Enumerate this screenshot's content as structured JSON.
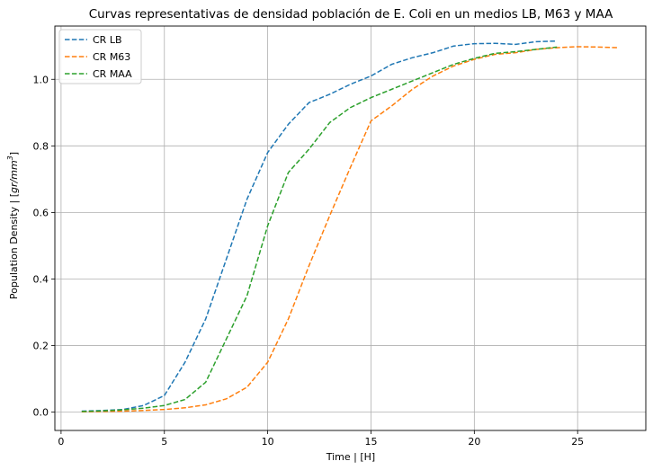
{
  "chart_data": {
    "type": "line",
    "title": "Curvas representativas de densidad población de E. Coli en un medios LB, M63 y MAA",
    "xlabel": "Time | [H]",
    "ylabel_prefix": "Population Density | [",
    "ylabel_unit_main": "gr/mm",
    "ylabel_unit_sup": "3",
    "ylabel_suffix": "]",
    "xlim": [
      -0.3,
      28.3
    ],
    "ylim": [
      -0.055,
      1.16
    ],
    "xticks": [
      0,
      5,
      10,
      15,
      20,
      25
    ],
    "xtick_labels": [
      "0",
      "5",
      "10",
      "15",
      "20",
      "25"
    ],
    "yticks": [
      0.0,
      0.2,
      0.4,
      0.6,
      0.8,
      1.0
    ],
    "ytick_labels": [
      "0.0",
      "0.2",
      "0.4",
      "0.6",
      "0.8",
      "1.0"
    ],
    "grid": true,
    "legend_position": "top-left",
    "series": [
      {
        "name": "CR LB",
        "color": "#1f77b4",
        "x": [
          1,
          2,
          3,
          4,
          5,
          6,
          7,
          8,
          9,
          10,
          11,
          12,
          13,
          14,
          15,
          16,
          17,
          18,
          19,
          20,
          21,
          22,
          23,
          24
        ],
        "y": [
          0.003,
          0.005,
          0.008,
          0.02,
          0.05,
          0.15,
          0.28,
          0.46,
          0.64,
          0.78,
          0.865,
          0.93,
          0.955,
          0.985,
          1.01,
          1.045,
          1.065,
          1.08,
          1.1,
          1.107,
          1.108,
          1.105,
          1.113,
          1.115
        ]
      },
      {
        "name": "CR M63",
        "color": "#ff7f0e",
        "x": [
          1,
          2,
          3,
          4,
          5,
          6,
          7,
          8,
          9,
          10,
          11,
          12,
          13,
          14,
          15,
          16,
          17,
          18,
          19,
          20,
          21,
          22,
          23,
          24,
          25,
          26,
          27
        ],
        "y": [
          0.001,
          0.002,
          0.003,
          0.005,
          0.008,
          0.013,
          0.022,
          0.04,
          0.075,
          0.15,
          0.28,
          0.44,
          0.59,
          0.735,
          0.875,
          0.92,
          0.97,
          1.01,
          1.04,
          1.06,
          1.075,
          1.08,
          1.09,
          1.095,
          1.098,
          1.097,
          1.095
        ]
      },
      {
        "name": "CR MAA",
        "color": "#2ca02c",
        "x": [
          1,
          2,
          3,
          4,
          5,
          6,
          7,
          8,
          9,
          10,
          11,
          12,
          13,
          14,
          15,
          16,
          17,
          18,
          19,
          20,
          21,
          22,
          23,
          24
        ],
        "y": [
          0.002,
          0.004,
          0.007,
          0.012,
          0.02,
          0.038,
          0.09,
          0.22,
          0.35,
          0.56,
          0.72,
          0.79,
          0.87,
          0.915,
          0.945,
          0.97,
          0.995,
          1.02,
          1.045,
          1.063,
          1.078,
          1.083,
          1.09,
          1.097
        ]
      }
    ]
  }
}
